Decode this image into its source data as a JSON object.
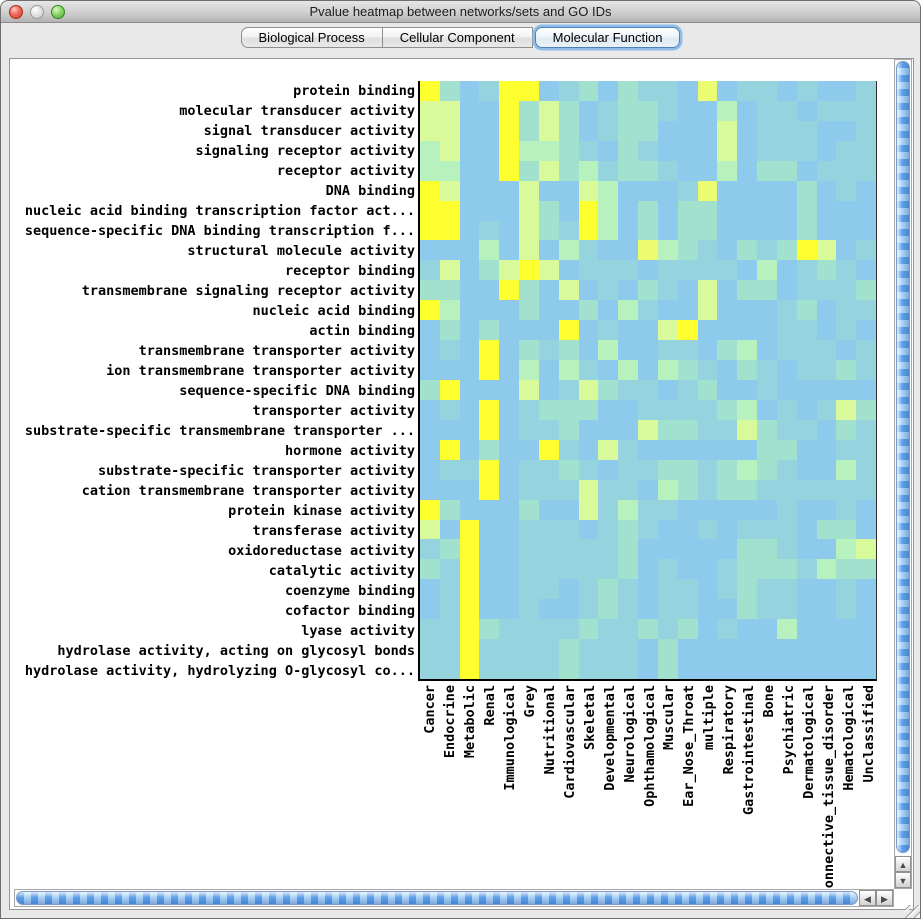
{
  "window": {
    "title": "Pvalue heatmap between networks/sets and GO IDs"
  },
  "tabs": [
    {
      "label": "Biological Process",
      "selected": false
    },
    {
      "label": "Cellular Component",
      "selected": false
    },
    {
      "label": "Molecular Function",
      "selected": true
    }
  ],
  "scrollbars": {
    "up_arrow": "▲",
    "down_arrow": "▼",
    "left_arrow": "◀",
    "right_arrow": "▶"
  },
  "chart_data": {
    "type": "heatmap",
    "rows": [
      "protein binding",
      "molecular transducer activity",
      "signal transducer activity",
      "signaling receptor activity",
      "receptor activity",
      "DNA binding",
      "nucleic acid binding transcription factor act...",
      "sequence-specific DNA binding transcription f...",
      "structural molecule activity",
      "receptor binding",
      "transmembrane signaling receptor activity",
      "nucleic acid binding",
      "actin binding",
      "transmembrane transporter activity",
      "ion transmembrane transporter activity",
      "sequence-specific DNA binding",
      "transporter activity",
      "substrate-specific transmembrane transporter ...",
      "hormone activity",
      "substrate-specific transporter activity",
      "cation transmembrane transporter activity",
      "protein kinase activity",
      "transferase activity",
      "oxidoreductase activity",
      "catalytic activity",
      "coenzyme binding",
      "cofactor binding",
      "lyase activity",
      "hydrolase activity, acting on glycosyl bonds",
      "hydrolase activity, hydrolyzing O-glycosyl co..."
    ],
    "columns": [
      "Cancer",
      "Endocrine",
      "Metabolic",
      "Renal",
      "Immunological",
      "Grey",
      "Nutritional",
      "Cardiovascular",
      "Skeletal",
      "Developmental",
      "Neurological",
      "Ophthamological",
      "Muscular",
      "Ear_Nose_Throat",
      "multiple",
      "Respiratory",
      "Gastrointestinal",
      "Bone",
      "Psychiatric",
      "Dermatological",
      "Connective_tissue_disorder",
      "Hematological",
      "Unclassified"
    ],
    "palette": [
      "#8DCAEC",
      "#95D3DF",
      "#A3E1CF",
      "#B7F2BE",
      "#D9FA9B",
      "#EBFC70",
      "#FEFF2E"
    ],
    "palette_scale": "0 = low significance (light blue) ... 6 = high significance (yellow)",
    "cells": [
      "62016601202110501101001",
      "44006242012210030110111",
      "44006242012200040111001",
      "34006332102100040111011",
      "33006242312210030220111",
      "64000400430001500002010",
      "66000420630202200002000",
      "66010421630202200002000",
      "00030403100532102126401",
      "14024640111011110301210",
      "22006204010210402201112",
      "63000200203100400012011",
      "02020006010046000011010",
      "01060212030011023011101",
      "00060303103032102101121",
      "26000401421101200100000",
      "01060122200111123010142",
      "00060112000422114211021",
      "06020061041000000220011",
      "01160112101122123210031",
      "00060111411032122111111",
      "62000200413110000010010",
      "40600111012100101110220",
      "12600111112000002210034",
      "21600111112010012221322",
      "01600110121011012110010",
      "01600100121011002110010",
      "11621111211212010030000",
      "11611112111020000000000",
      "11611112111020000000000"
    ],
    "layout": {
      "grid": false,
      "legend": "none",
      "x_tick_rotation": 90
    }
  }
}
